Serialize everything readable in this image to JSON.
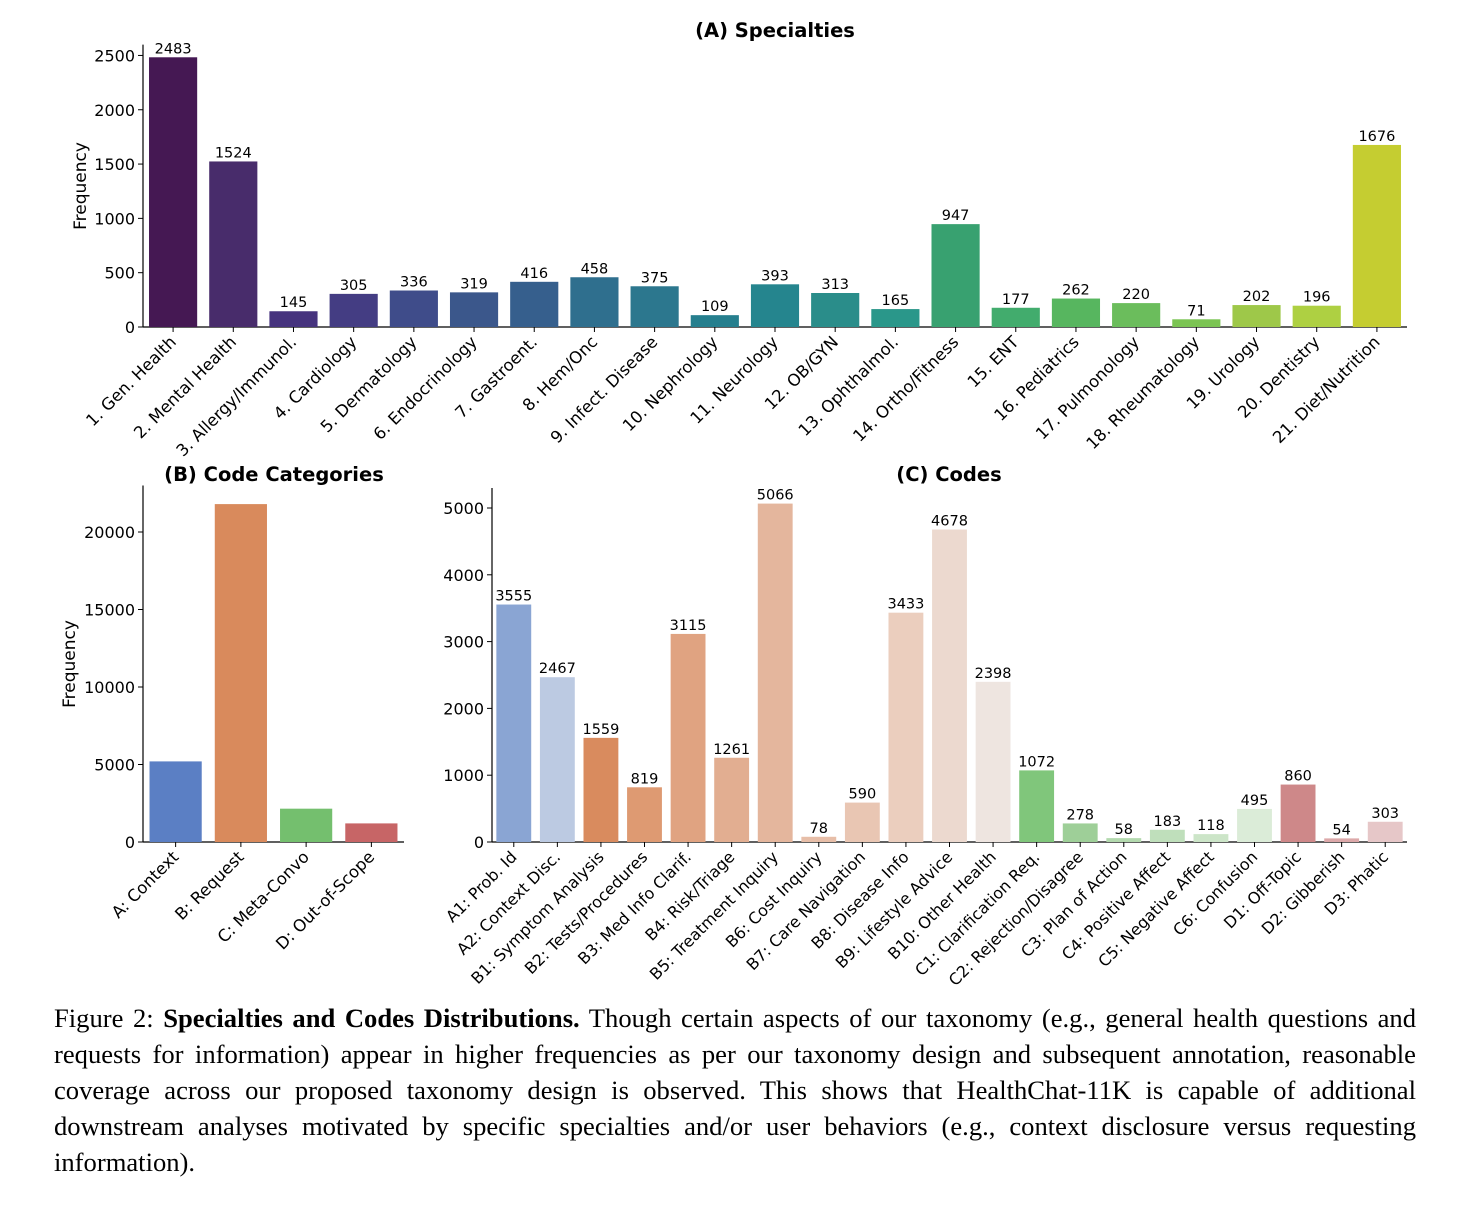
{
  "chart_data": [
    {
      "type": "bar",
      "title": "(A) Specialties",
      "ylabel": "Frequency",
      "xlabel": "",
      "ylim": [
        0,
        2600
      ],
      "yticks": [
        0,
        500,
        1000,
        1500,
        2000,
        2500
      ],
      "categories": [
        "1. Gen. Health",
        "2. Mental Health",
        "3. Allergy/Immunol.",
        "4. Cardiology",
        "5. Dermatology",
        "6. Endocrinology",
        "7. Gastroent.",
        "8. Hem/Onc",
        "9. Infect. Disease",
        "10. Nephrology",
        "11. Neurology",
        "12. OB/GYN",
        "13. Ophthalmol.",
        "14. Ortho/Fitness",
        "15. ENT",
        "16. Pediatrics",
        "17. Pulmonology",
        "18. Rheumatology",
        "19. Urology",
        "20. Dentistry",
        "21. Diet/Nutrition"
      ],
      "values": [
        2483,
        1524,
        145,
        305,
        336,
        319,
        416,
        458,
        375,
        109,
        393,
        313,
        165,
        947,
        177,
        262,
        220,
        71,
        202,
        196,
        1676
      ],
      "data_labels": [
        "2483",
        "1524",
        "145",
        "305",
        "336",
        "319",
        "416",
        "458",
        "375",
        "109",
        "393",
        "313",
        "165",
        "947",
        "177",
        "262",
        "220",
        "71",
        "202",
        "196",
        "1676"
      ],
      "colors": [
        "#451853",
        "#482c6b",
        "#46337e",
        "#443d83",
        "#3f4c8a",
        "#3b578b",
        "#365f8d",
        "#2f6f8e",
        "#2c778e",
        "#267f8e",
        "#25858e",
        "#2a8d8a",
        "#2a978a",
        "#38a170",
        "#42ac6d",
        "#57b65f",
        "#6bbd5c",
        "#7bc453",
        "#9ec849",
        "#aed042",
        "#c5cd31"
      ],
      "grid": false
    },
    {
      "type": "bar",
      "title": "(B) Code Categories",
      "ylabel": "Frequency",
      "xlabel": "",
      "ylim": [
        0,
        23000
      ],
      "yticks": [
        0,
        5000,
        10000,
        15000,
        20000
      ],
      "categories": [
        "A: Context",
        "B: Request",
        "C: Meta-Convo",
        "D: Out-of-Scope"
      ],
      "values": [
        5200,
        21800,
        2150,
        1200
      ],
      "colors": [
        "#5b7fc4",
        "#d98a5c",
        "#74bf6e",
        "#c76566"
      ],
      "grid": false
    },
    {
      "type": "bar",
      "title": "(C) Codes",
      "ylabel": "",
      "xlabel": "",
      "ylim": [
        0,
        5300
      ],
      "yticks": [
        0,
        1000,
        2000,
        3000,
        4000,
        5000
      ],
      "categories": [
        "A1: Prob. Id",
        "A2: Context Disc.",
        "B1: Symptom Analysis",
        "B2: Tests/Procedures",
        "B3: Med Info Clarif.",
        "B4: Risk/Triage",
        "B5: Treatment Inquiry",
        "B6: Cost Inquiry",
        "B7: Care Navigation",
        "B8: Disease Info",
        "B9: Lifestyle Advice",
        "B10: Other Health",
        "C1: Clarification Req.",
        "C2: Rejection/Disagree",
        "C3: Plan of Action",
        "C4: Positive Affect",
        "C5: Negative Affect",
        "C6: Confusion",
        "D1: Off-Topic",
        "D2: Gibberish",
        "D3: Phatic"
      ],
      "values": [
        3555,
        2467,
        1559,
        819,
        3115,
        1261,
        5066,
        78,
        590,
        3433,
        4678,
        2398,
        1072,
        278,
        58,
        183,
        118,
        495,
        860,
        54,
        303
      ],
      "data_labels": [
        "3555",
        "2467",
        "1559",
        "819",
        "3115",
        "1261",
        "5066",
        "78",
        "590",
        "3433",
        "4678",
        "2398",
        "1072",
        "278",
        "58",
        "183",
        "118",
        "495",
        "860",
        "54",
        "303"
      ],
      "colors": [
        "#8aa5d3",
        "#bccae2",
        "#d98b5e",
        "#de9a72",
        "#e0a381",
        "#e2ae91",
        "#e4b69d",
        "#e7bea8",
        "#e9c6b3",
        "#ebcebe",
        "#ecd9cf",
        "#eee5e0",
        "#80c67b",
        "#9ecf98",
        "#b3d9ae",
        "#bfdfbb",
        "#cce5c8",
        "#dbecd8",
        "#ce8889",
        "#dca8a9",
        "#e6c7c8"
      ],
      "grid": false
    }
  ],
  "caption": {
    "prefix": "Figure 2: ",
    "bold": "Specialties and Codes Distributions.",
    "text": " Though certain aspects of our taxonomy (e.g., general health questions and requests for information) appear in higher frequencies as per our taxonomy design and subsequent annotation, reasonable coverage across our proposed taxonomy design is observed. This shows that HealthChat-11K is capable of additional downstream analyses motivated by specific specialties and/or user behaviors (e.g., context disclosure versus requesting information)."
  }
}
